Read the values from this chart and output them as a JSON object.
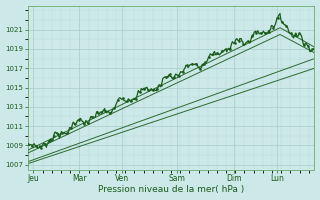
{
  "xlabel": "Pression niveau de la mer( hPa )",
  "bg_color": "#cce8e8",
  "grid_major_color": "#aacccc",
  "grid_minor_color": "#bbdddd",
  "line_color": "#1a5c1a",
  "ylim": [
    1006.5,
    1023.5
  ],
  "yticks": [
    1007,
    1009,
    1011,
    1013,
    1015,
    1017,
    1019,
    1021
  ],
  "days": [
    "Jeu",
    "Mar",
    "Ven",
    "Sam",
    "Dim",
    "Lun"
  ],
  "day_x": [
    0.02,
    0.18,
    0.33,
    0.52,
    0.72,
    0.87
  ],
  "n_points": 400,
  "xlim": [
    0,
    1
  ]
}
